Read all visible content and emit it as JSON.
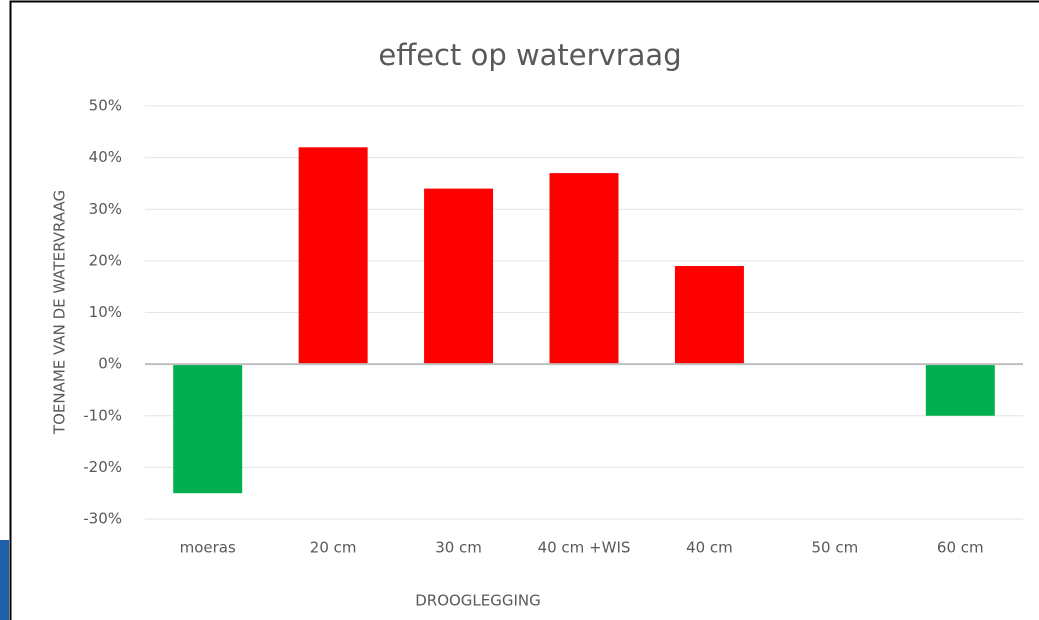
{
  "chart_data": {
    "type": "bar",
    "title": "effect op watervraag",
    "x_label": "DROOGLEGGING",
    "y_label": "TOENAME VAN DE WATERVRAAG",
    "categories": [
      "moeras",
      "20 cm",
      "30 cm",
      "40 cm +WIS",
      "40 cm",
      "50 cm",
      "60 cm"
    ],
    "values": [
      -25,
      42,
      34,
      37,
      19,
      0,
      -10
    ],
    "colors": [
      "#00b050",
      "#ff0000",
      "#ff0000",
      "#ff0000",
      "#ff0000",
      "#ff0000",
      "#00b050"
    ],
    "ylim": [
      -30,
      50
    ],
    "yticks": [
      {
        "value": -30,
        "label": "-30%"
      },
      {
        "value": -20,
        "label": "-20%"
      },
      {
        "value": -10,
        "label": "-10%"
      },
      {
        "value": 0,
        "label": "0%"
      },
      {
        "value": 10,
        "label": "10%"
      },
      {
        "value": 20,
        "label": "20%"
      },
      {
        "value": 30,
        "label": "30%"
      },
      {
        "value": 40,
        "label": "40%"
      },
      {
        "value": 50,
        "label": "50%"
      }
    ],
    "grid": true
  }
}
